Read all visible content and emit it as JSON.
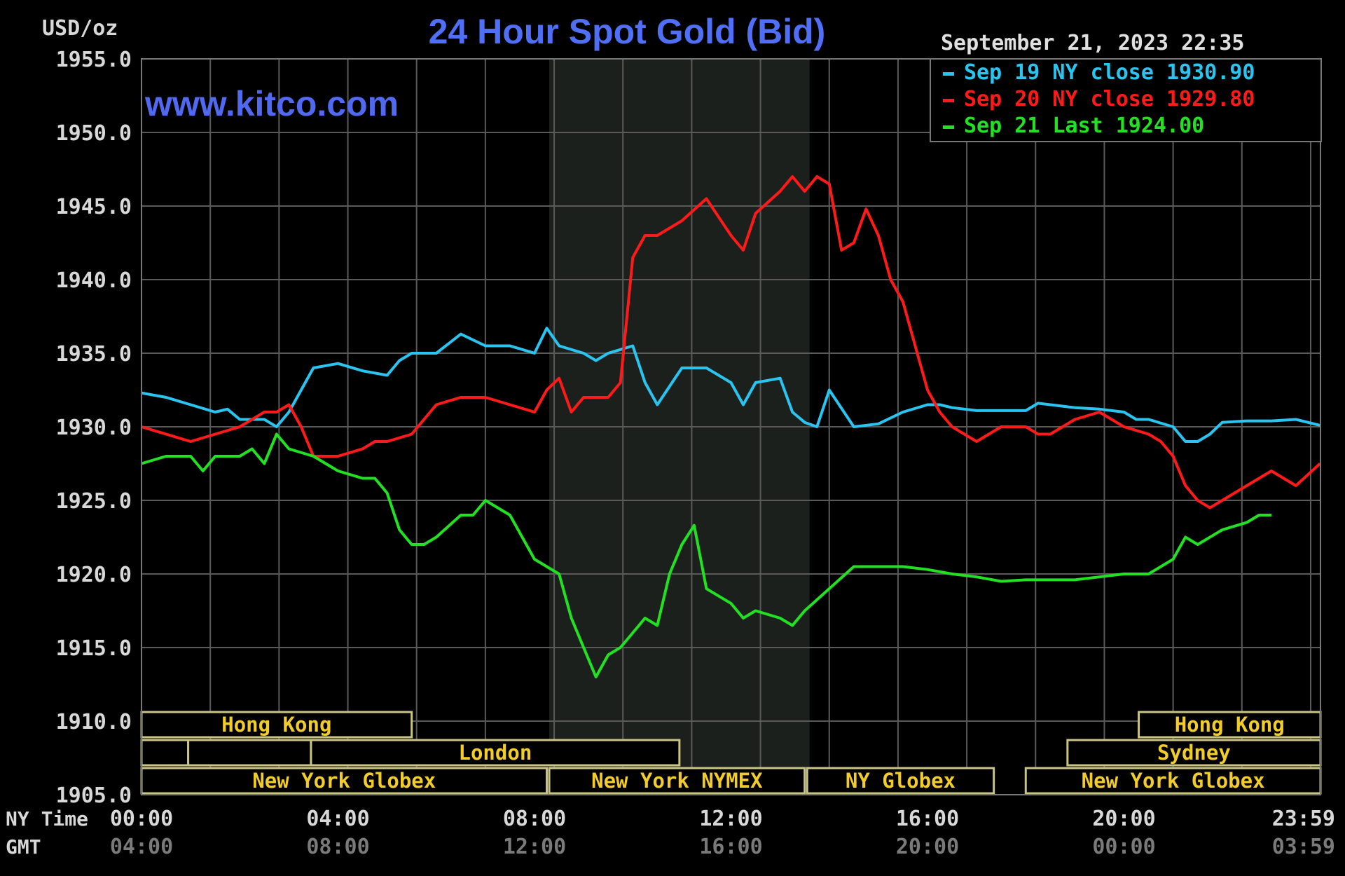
{
  "chart_data": {
    "type": "line",
    "title": "24 Hour Spot Gold (Bid)",
    "ylabel": "USD/oz",
    "watermark": "www.kitco.com",
    "timestamp": "September 21, 2023 22:35",
    "ylim": [
      1905,
      1955
    ],
    "y_ticks": [
      "1955.0",
      "1950.0",
      "1945.0",
      "1940.0",
      "1935.0",
      "1930.0",
      "1925.0",
      "1920.0",
      "1915.0",
      "1910.0",
      "1905.0"
    ],
    "xlim": [
      0,
      24
    ],
    "x_axis_rows": [
      {
        "label": "NY Time",
        "ticks": [
          "00:00",
          "04:00",
          "08:00",
          "12:00",
          "16:00",
          "20:00",
          "23:59"
        ]
      },
      {
        "label": "GMT",
        "ticks": [
          "04:00",
          "08:00",
          "12:00",
          "16:00",
          "20:00",
          "00:00",
          "03:59"
        ]
      }
    ],
    "grid": true,
    "legend_position": "top-right",
    "shaded_hours": [
      8.3,
      13.6
    ],
    "sessions": [
      {
        "name": "Hong Kong",
        "row": 0,
        "start": 0,
        "end": 5.5
      },
      {
        "name": "Hong Kong",
        "row": 0,
        "start": 20.3,
        "end": 24
      },
      {
        "name": "",
        "row": 1,
        "start": 0,
        "end": 0.95
      },
      {
        "name": "",
        "row": 1,
        "start": 0.95,
        "end": 3.45
      },
      {
        "name": "London",
        "row": 1,
        "start": 3.45,
        "end": 10.95
      },
      {
        "name": "Sydney",
        "row": 1,
        "start": 18.85,
        "end": 24
      },
      {
        "name": "New York Globex",
        "row": 2,
        "start": 0,
        "end": 8.25
      },
      {
        "name": "New York NYMEX",
        "row": 2,
        "start": 8.3,
        "end": 13.5
      },
      {
        "name": "NY Globex",
        "row": 2,
        "start": 13.55,
        "end": 17.35
      },
      {
        "name": "New York Globex",
        "row": 2,
        "start": 18.0,
        "end": 24
      }
    ],
    "series": [
      {
        "name": "Sep 19 NY close 1930.90",
        "color": "#29c5f0",
        "x": [
          0,
          0.5,
          1,
          1.5,
          1.75,
          2,
          2.5,
          2.75,
          3,
          3.5,
          4,
          4.5,
          5,
          5.25,
          5.5,
          6,
          6.5,
          7,
          7.5,
          8,
          8.25,
          8.5,
          9,
          9.25,
          9.5,
          10,
          10.25,
          10.5,
          11,
          11.5,
          12,
          12.25,
          12.5,
          13,
          13.25,
          13.5,
          13.75,
          14,
          14.5,
          15,
          15.5,
          16,
          16.25,
          16.5,
          17,
          17.5,
          18,
          18.25,
          18.5,
          19,
          19.5,
          20,
          20.25,
          20.5,
          21,
          21.25,
          21.5,
          21.75,
          22,
          22.5,
          23,
          23.5,
          23.99
        ],
        "y": [
          1932.3,
          1932,
          1931.5,
          1931,
          1931.2,
          1930.5,
          1930.5,
          1930,
          1931,
          1934,
          1934.3,
          1933.8,
          1933.5,
          1934.5,
          1935,
          1935,
          1936.3,
          1935.5,
          1935.5,
          1935,
          1936.7,
          1935.5,
          1935,
          1934.5,
          1935,
          1935.5,
          1933,
          1931.5,
          1934,
          1934,
          1933,
          1931.5,
          1933,
          1933.3,
          1931,
          1930.3,
          1930,
          1932.5,
          1930,
          1930.2,
          1931,
          1931.5,
          1931.5,
          1931.3,
          1931.1,
          1931.1,
          1931.1,
          1931.6,
          1931.5,
          1931.3,
          1931.2,
          1931,
          1930.5,
          1930.5,
          1930,
          1929,
          1929,
          1929.5,
          1930.3,
          1930.4,
          1930.4,
          1930.5,
          1930.1
        ]
      },
      {
        "name": "Sep 20 NY close 1929.80",
        "color": "#ff1a1a",
        "x": [
          0,
          0.5,
          1,
          1.5,
          2,
          2.5,
          2.75,
          3,
          3.25,
          3.5,
          4,
          4.5,
          4.75,
          5,
          5.5,
          6,
          6.5,
          7,
          7.5,
          8,
          8.25,
          8.5,
          8.75,
          9,
          9.5,
          9.75,
          10,
          10.25,
          10.5,
          11,
          11.5,
          12,
          12.25,
          12.5,
          13,
          13.25,
          13.5,
          13.75,
          14,
          14.25,
          14.5,
          14.75,
          15,
          15.25,
          15.5,
          16,
          16.25,
          16.5,
          17,
          17.5,
          18,
          18.25,
          18.5,
          19,
          19.5,
          20,
          20.5,
          20.75,
          21,
          21.25,
          21.5,
          21.75,
          22,
          22.5,
          23,
          23.5,
          23.99
        ],
        "y": [
          1930,
          1929.5,
          1929,
          1929.5,
          1930,
          1931,
          1931,
          1931.5,
          1930,
          1928,
          1928,
          1928.5,
          1929,
          1929,
          1929.5,
          1931.5,
          1932,
          1932,
          1931.5,
          1931,
          1932.5,
          1933.3,
          1931,
          1932,
          1932,
          1933,
          1941.5,
          1943,
          1943,
          1944,
          1945.5,
          1943,
          1942,
          1944.5,
          1946,
          1947,
          1946,
          1947,
          1946.5,
          1942,
          1942.5,
          1944.8,
          1943,
          1940,
          1938.5,
          1932.5,
          1931,
          1930,
          1929,
          1930,
          1930,
          1929.5,
          1929.5,
          1930.5,
          1931,
          1930,
          1929.5,
          1929,
          1928,
          1926,
          1925,
          1924.5,
          1925,
          1926,
          1927,
          1926,
          1927.5
        ]
      },
      {
        "name": "Sep 21 Last 1924.00",
        "color": "#22e022",
        "x": [
          0,
          0.5,
          1,
          1.25,
          1.5,
          2,
          2.25,
          2.5,
          2.75,
          3,
          3.5,
          4,
          4.5,
          4.75,
          5,
          5.25,
          5.5,
          5.75,
          6,
          6.5,
          6.75,
          7,
          7.25,
          7.5,
          8,
          8.25,
          8.5,
          8.75,
          9,
          9.25,
          9.5,
          9.75,
          10,
          10.25,
          10.5,
          10.75,
          11,
          11.25,
          11.5,
          12,
          12.25,
          12.5,
          13,
          13.25,
          13.5,
          14,
          14.5,
          15,
          15.5,
          16,
          16.5,
          17,
          17.5,
          18,
          18.5,
          19,
          19.5,
          20,
          20.5,
          20.75,
          21,
          21.25,
          21.5,
          22,
          22.5,
          22.75,
          23
        ],
        "y": [
          1927.5,
          1928,
          1928,
          1927,
          1928,
          1928,
          1928.5,
          1927.5,
          1929.5,
          1928.5,
          1928,
          1927,
          1926.5,
          1926.5,
          1925.5,
          1923,
          1922,
          1922,
          1922.5,
          1924,
          1924,
          1925,
          1924.5,
          1924,
          1921,
          1920.5,
          1920,
          1917,
          1915,
          1913,
          1914.5,
          1915,
          1916,
          1917,
          1916.5,
          1920,
          1922,
          1923.3,
          1919,
          1918,
          1917,
          1917.5,
          1917,
          1916.5,
          1917.5,
          1919,
          1920.5,
          1920.5,
          1920.5,
          1920.3,
          1920,
          1919.8,
          1919.5,
          1919.6,
          1919.6,
          1919.6,
          1919.8,
          1920,
          1920,
          1920.5,
          1921,
          1922.5,
          1922,
          1923,
          1923.5,
          1924,
          1924
        ]
      }
    ]
  }
}
